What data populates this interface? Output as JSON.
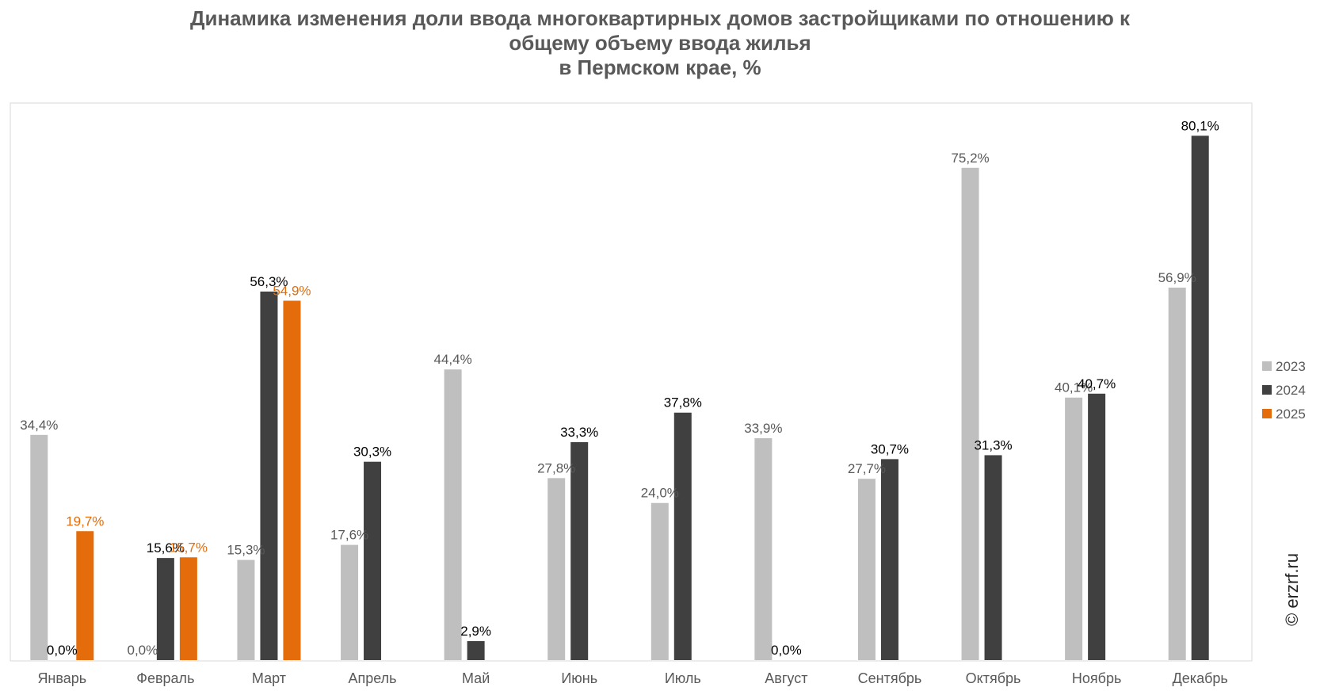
{
  "title": {
    "line1": "Динамика изменения доли ввода многоквартирных домов застройщиками по отношению к",
    "line2": "общему объему ввода жилья",
    "line3": "в Пермском крае, %"
  },
  "copyright": "© erzrf.ru",
  "colors": {
    "2023": "#bfbfbf",
    "2024": "#404040",
    "2025": "#e46c0a"
  },
  "chart_data": {
    "type": "bar",
    "title": "Динамика изменения доли ввода многоквартирных домов застройщиками по отношению к общему объему ввода жилья в Пермском крае, %",
    "categories": [
      "Январь",
      "Февраль",
      "Март",
      "Апрель",
      "Май",
      "Июнь",
      "Июль",
      "Август",
      "Сентябрь",
      "Октябрь",
      "Ноябрь",
      "Декабрь"
    ],
    "ylim": [
      0,
      90
    ],
    "grid": false,
    "legend_position": "right",
    "series": [
      {
        "name": "2023",
        "color": "#bfbfbf",
        "values": [
          34.4,
          0.0,
          15.3,
          17.6,
          44.4,
          27.8,
          24.0,
          33.9,
          27.7,
          75.2,
          40.1,
          56.9
        ],
        "labels": [
          "34,4%",
          "0,0%",
          "15,3%",
          "17,6%",
          "44,4%",
          "27,8%",
          "24,0%",
          "33,9%",
          "27,7%",
          "75,2%",
          "40,1%",
          "56,9%"
        ]
      },
      {
        "name": "2024",
        "color": "#404040",
        "values": [
          0.0,
          15.6,
          56.3,
          30.3,
          2.9,
          33.3,
          37.8,
          0.0,
          30.7,
          31.3,
          40.7,
          80.1
        ],
        "labels": [
          "0,0%",
          "15,6%",
          "56,3%",
          "30,3%",
          "2,9%",
          "33,3%",
          "37,8%",
          "0,0%",
          "30,7%",
          "31,3%",
          "40,7%",
          "80,1%"
        ]
      },
      {
        "name": "2025",
        "color": "#e46c0a",
        "values": [
          19.7,
          15.7,
          54.9,
          null,
          null,
          null,
          null,
          null,
          null,
          null,
          null,
          null
        ],
        "labels": [
          "19,7%",
          "15,7%",
          "54,9%",
          null,
          null,
          null,
          null,
          null,
          null,
          null,
          null,
          null
        ]
      }
    ]
  }
}
